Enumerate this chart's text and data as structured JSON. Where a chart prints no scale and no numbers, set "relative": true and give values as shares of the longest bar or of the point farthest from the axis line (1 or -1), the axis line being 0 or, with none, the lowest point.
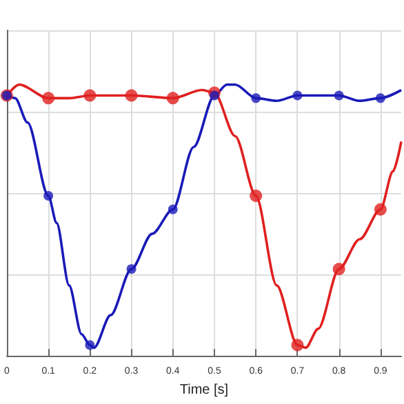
{
  "chart_data": {
    "type": "line",
    "xlabel": "Time [s]",
    "relative": true,
    "grid": true,
    "marker": "none",
    "line_style": "solid",
    "xlim": [
      0,
      0.95
    ],
    "xticks": [
      0,
      0.1,
      0.2,
      0.3,
      0.4,
      0.5,
      0.6,
      0.7,
      0.8,
      0.9
    ],
    "series": [
      {
        "color": "#1a1ab8",
        "x": [
          0,
          0.02,
          0.05,
          0.1,
          0.12,
          0.15,
          0.18,
          0.2,
          0.21,
          0.25,
          0.3,
          0.35,
          0.4,
          0.45,
          0.5,
          0.53,
          0.55,
          0.6,
          0.65,
          0.7,
          0.75,
          0.8,
          0.85,
          0.9,
          0.95
        ],
        "values": [
          0.96,
          0.95,
          0.86,
          0.59,
          0.49,
          0.26,
          0.08,
          0.04,
          0.03,
          0.15,
          0.32,
          0.45,
          0.54,
          0.77,
          0.96,
          1.0,
          1.0,
          0.95,
          0.94,
          0.96,
          0.96,
          0.96,
          0.94,
          0.95,
          0.98
        ]
      },
      {
        "color": "#e02020",
        "x": [
          0,
          0.03,
          0.1,
          0.15,
          0.2,
          0.3,
          0.4,
          0.47,
          0.5,
          0.55,
          0.6,
          0.65,
          0.7,
          0.72,
          0.75,
          0.8,
          0.85,
          0.9,
          0.93,
          0.95
        ],
        "values": [
          0.96,
          1.0,
          0.95,
          0.95,
          0.96,
          0.96,
          0.95,
          0.98,
          0.97,
          0.81,
          0.59,
          0.26,
          0.04,
          0.03,
          0.1,
          0.32,
          0.43,
          0.54,
          0.68,
          0.79
        ]
      },
      {
        "type": "scatter",
        "marker": "circle",
        "color": "#e02020",
        "x": [
          0,
          0.1,
          0.2,
          0.3,
          0.4,
          0.5,
          0.6,
          0.7,
          0.8,
          0.9
        ],
        "values": [
          0.96,
          0.95,
          0.96,
          0.96,
          0.95,
          0.97,
          0.59,
          0.04,
          0.32,
          0.54
        ]
      },
      {
        "type": "scatter",
        "marker": "circle",
        "color": "#1a1ab8",
        "x": [
          0,
          0.1,
          0.2,
          0.3,
          0.4,
          0.5,
          0.6,
          0.7,
          0.8,
          0.9
        ],
        "values": [
          0.96,
          0.59,
          0.04,
          0.32,
          0.54,
          0.96,
          0.95,
          0.96,
          0.96,
          0.95
        ]
      }
    ]
  }
}
